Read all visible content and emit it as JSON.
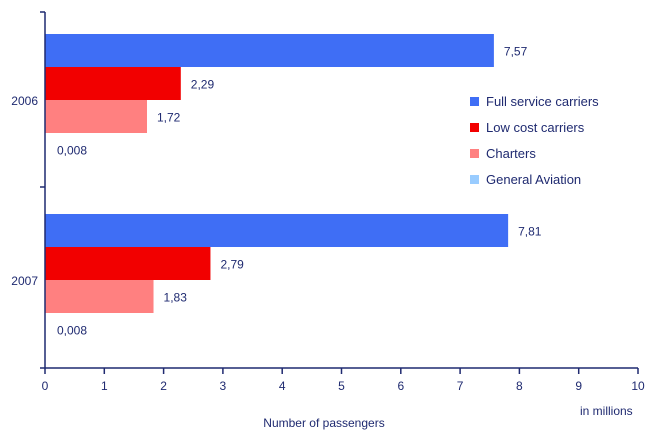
{
  "chart_data": {
    "type": "bar",
    "orientation": "horizontal",
    "categories": [
      "2006",
      "2007"
    ],
    "series": [
      {
        "name": "Full service carriers",
        "values": [
          7.57,
          7.81
        ],
        "labels": [
          "7,57",
          "7,81"
        ],
        "color": "#3f6ef5"
      },
      {
        "name": "Low cost carriers",
        "values": [
          2.29,
          2.79
        ],
        "labels": [
          "2,29",
          "2,79"
        ],
        "color": "#f20000"
      },
      {
        "name": "Charters",
        "values": [
          1.72,
          1.83
        ],
        "labels": [
          "1,72",
          "1,83"
        ],
        "color": "#ff8080"
      },
      {
        "name": "General Aviation",
        "values": [
          0.008,
          0.008
        ],
        "labels": [
          "0,008",
          "0,008"
        ],
        "color": "#99ccff"
      }
    ],
    "xlim": [
      0,
      10
    ],
    "xticks": [
      "0",
      "1",
      "2",
      "3",
      "4",
      "5",
      "6",
      "7",
      "8",
      "9",
      "10"
    ],
    "xlabel": "Number of passengers",
    "unit": "in millions",
    "legend_position": "right",
    "grid": false
  }
}
